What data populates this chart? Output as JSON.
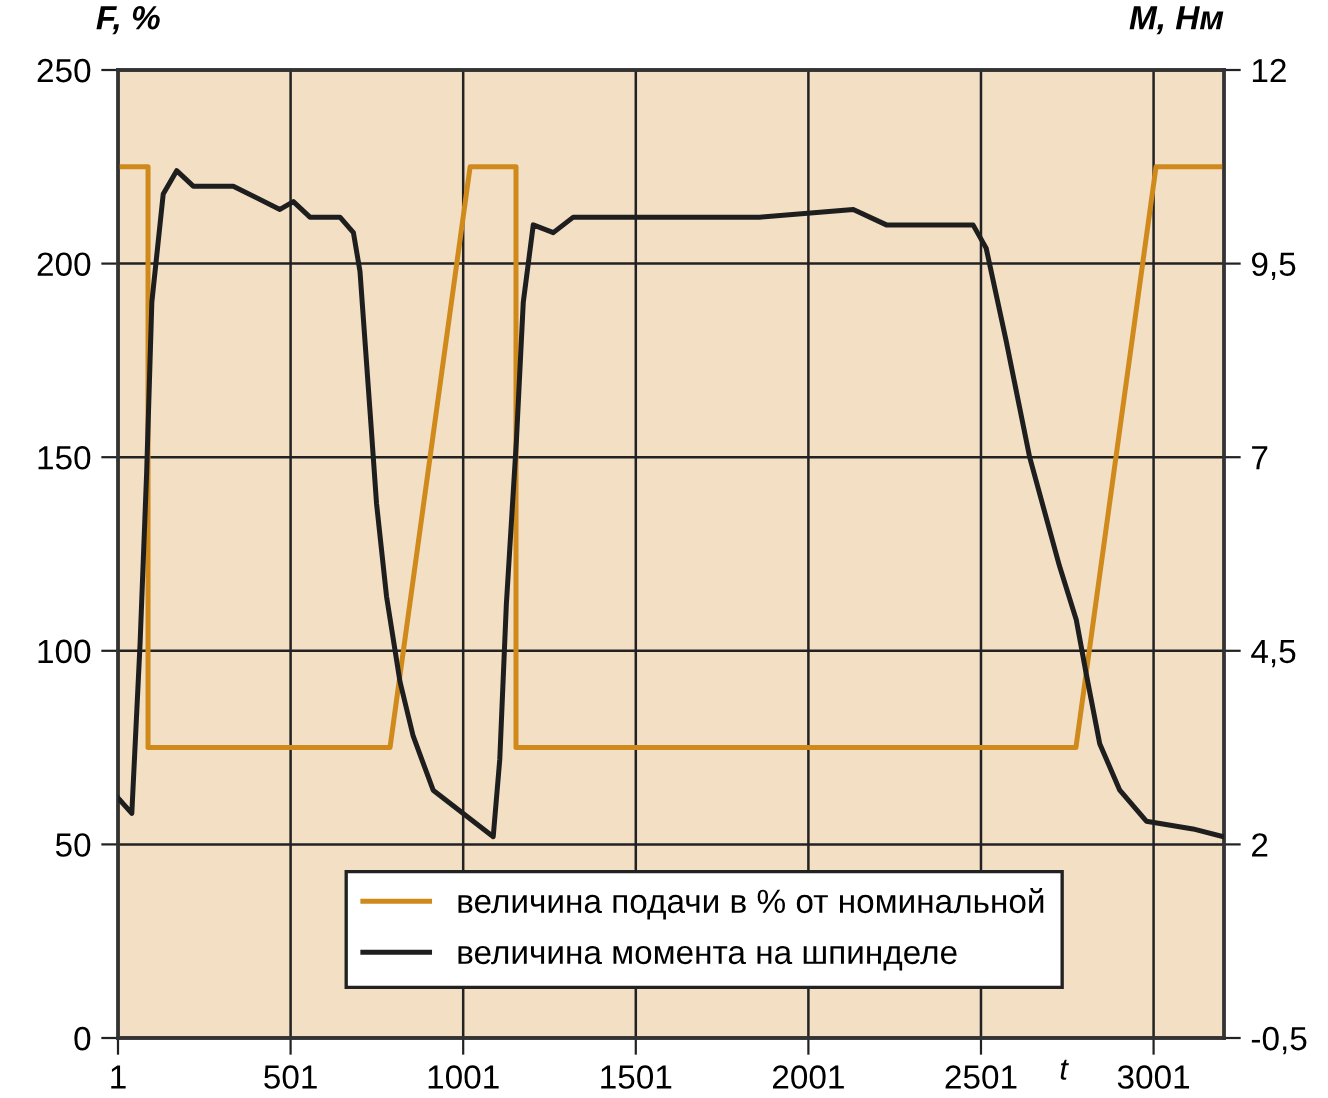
{
  "chart_data": {
    "type": "line",
    "ylabel": "F, %",
    "y2label": "M, Нм",
    "xlabel": "t",
    "xlim": [
      1,
      3205
    ],
    "xticks": [
      1,
      501,
      1001,
      1501,
      2001,
      2501,
      3001
    ],
    "ylim": [
      0,
      250
    ],
    "yticks": [
      0,
      50,
      100,
      150,
      200,
      250
    ],
    "y2lim": [
      -0.5,
      12
    ],
    "y2ticks": [
      {
        "value": -0.5,
        "label": "-0,5"
      },
      2,
      {
        "value": 4.5,
        "label": "4,5"
      },
      7,
      {
        "value": 9.5,
        "label": "9,5"
      },
      12
    ],
    "grid": true,
    "legend": "bottom",
    "marker": "none",
    "line_style": "solid",
    "series": [
      {
        "name": "величина подачи в % от номинальной",
        "color": "#d08a1c",
        "x": [
          1,
          88,
          88,
          789,
          1021,
          1154,
          1154,
          2776,
          3008,
          3205
        ],
        "values": [
          225,
          225,
          75,
          75,
          225,
          225,
          75,
          75,
          225,
          225
        ]
      },
      {
        "name": "величина момента на шпинделе",
        "color": "#1e1e1e",
        "axis": "y2",
        "x": [
          1,
          41,
          65,
          84,
          99,
          132,
          171,
          219,
          335,
          470,
          509,
          557,
          644,
          683,
          702,
          731,
          750,
          779,
          818,
          856,
          914,
          1001,
          1088,
          1107,
          1126,
          1155,
          1175,
          1204,
          1262,
          1320,
          1436,
          1628,
          1860,
          2131,
          2227,
          2478,
          2516,
          2574,
          2642,
          2728,
          2777,
          2806,
          2845,
          2903,
          2980,
          3115,
          3202
        ],
        "values": [
          2.6,
          2.4,
          4.6,
          6.8,
          9.0,
          10.4,
          10.7,
          10.5,
          10.5,
          10.2,
          10.3,
          10.1,
          10.1,
          9.9,
          9.4,
          7.6,
          6.4,
          5.2,
          4.1,
          3.4,
          2.7,
          2.4,
          2.1,
          3.1,
          5.1,
          7.2,
          9.0,
          10.0,
          9.9,
          10.1,
          10.1,
          10.1,
          10.1,
          10.2,
          10.0,
          10.0,
          9.7,
          8.5,
          7.0,
          5.6,
          4.9,
          4.2,
          3.3,
          2.7,
          2.3,
          2.2,
          2.1
        ]
      }
    ]
  }
}
